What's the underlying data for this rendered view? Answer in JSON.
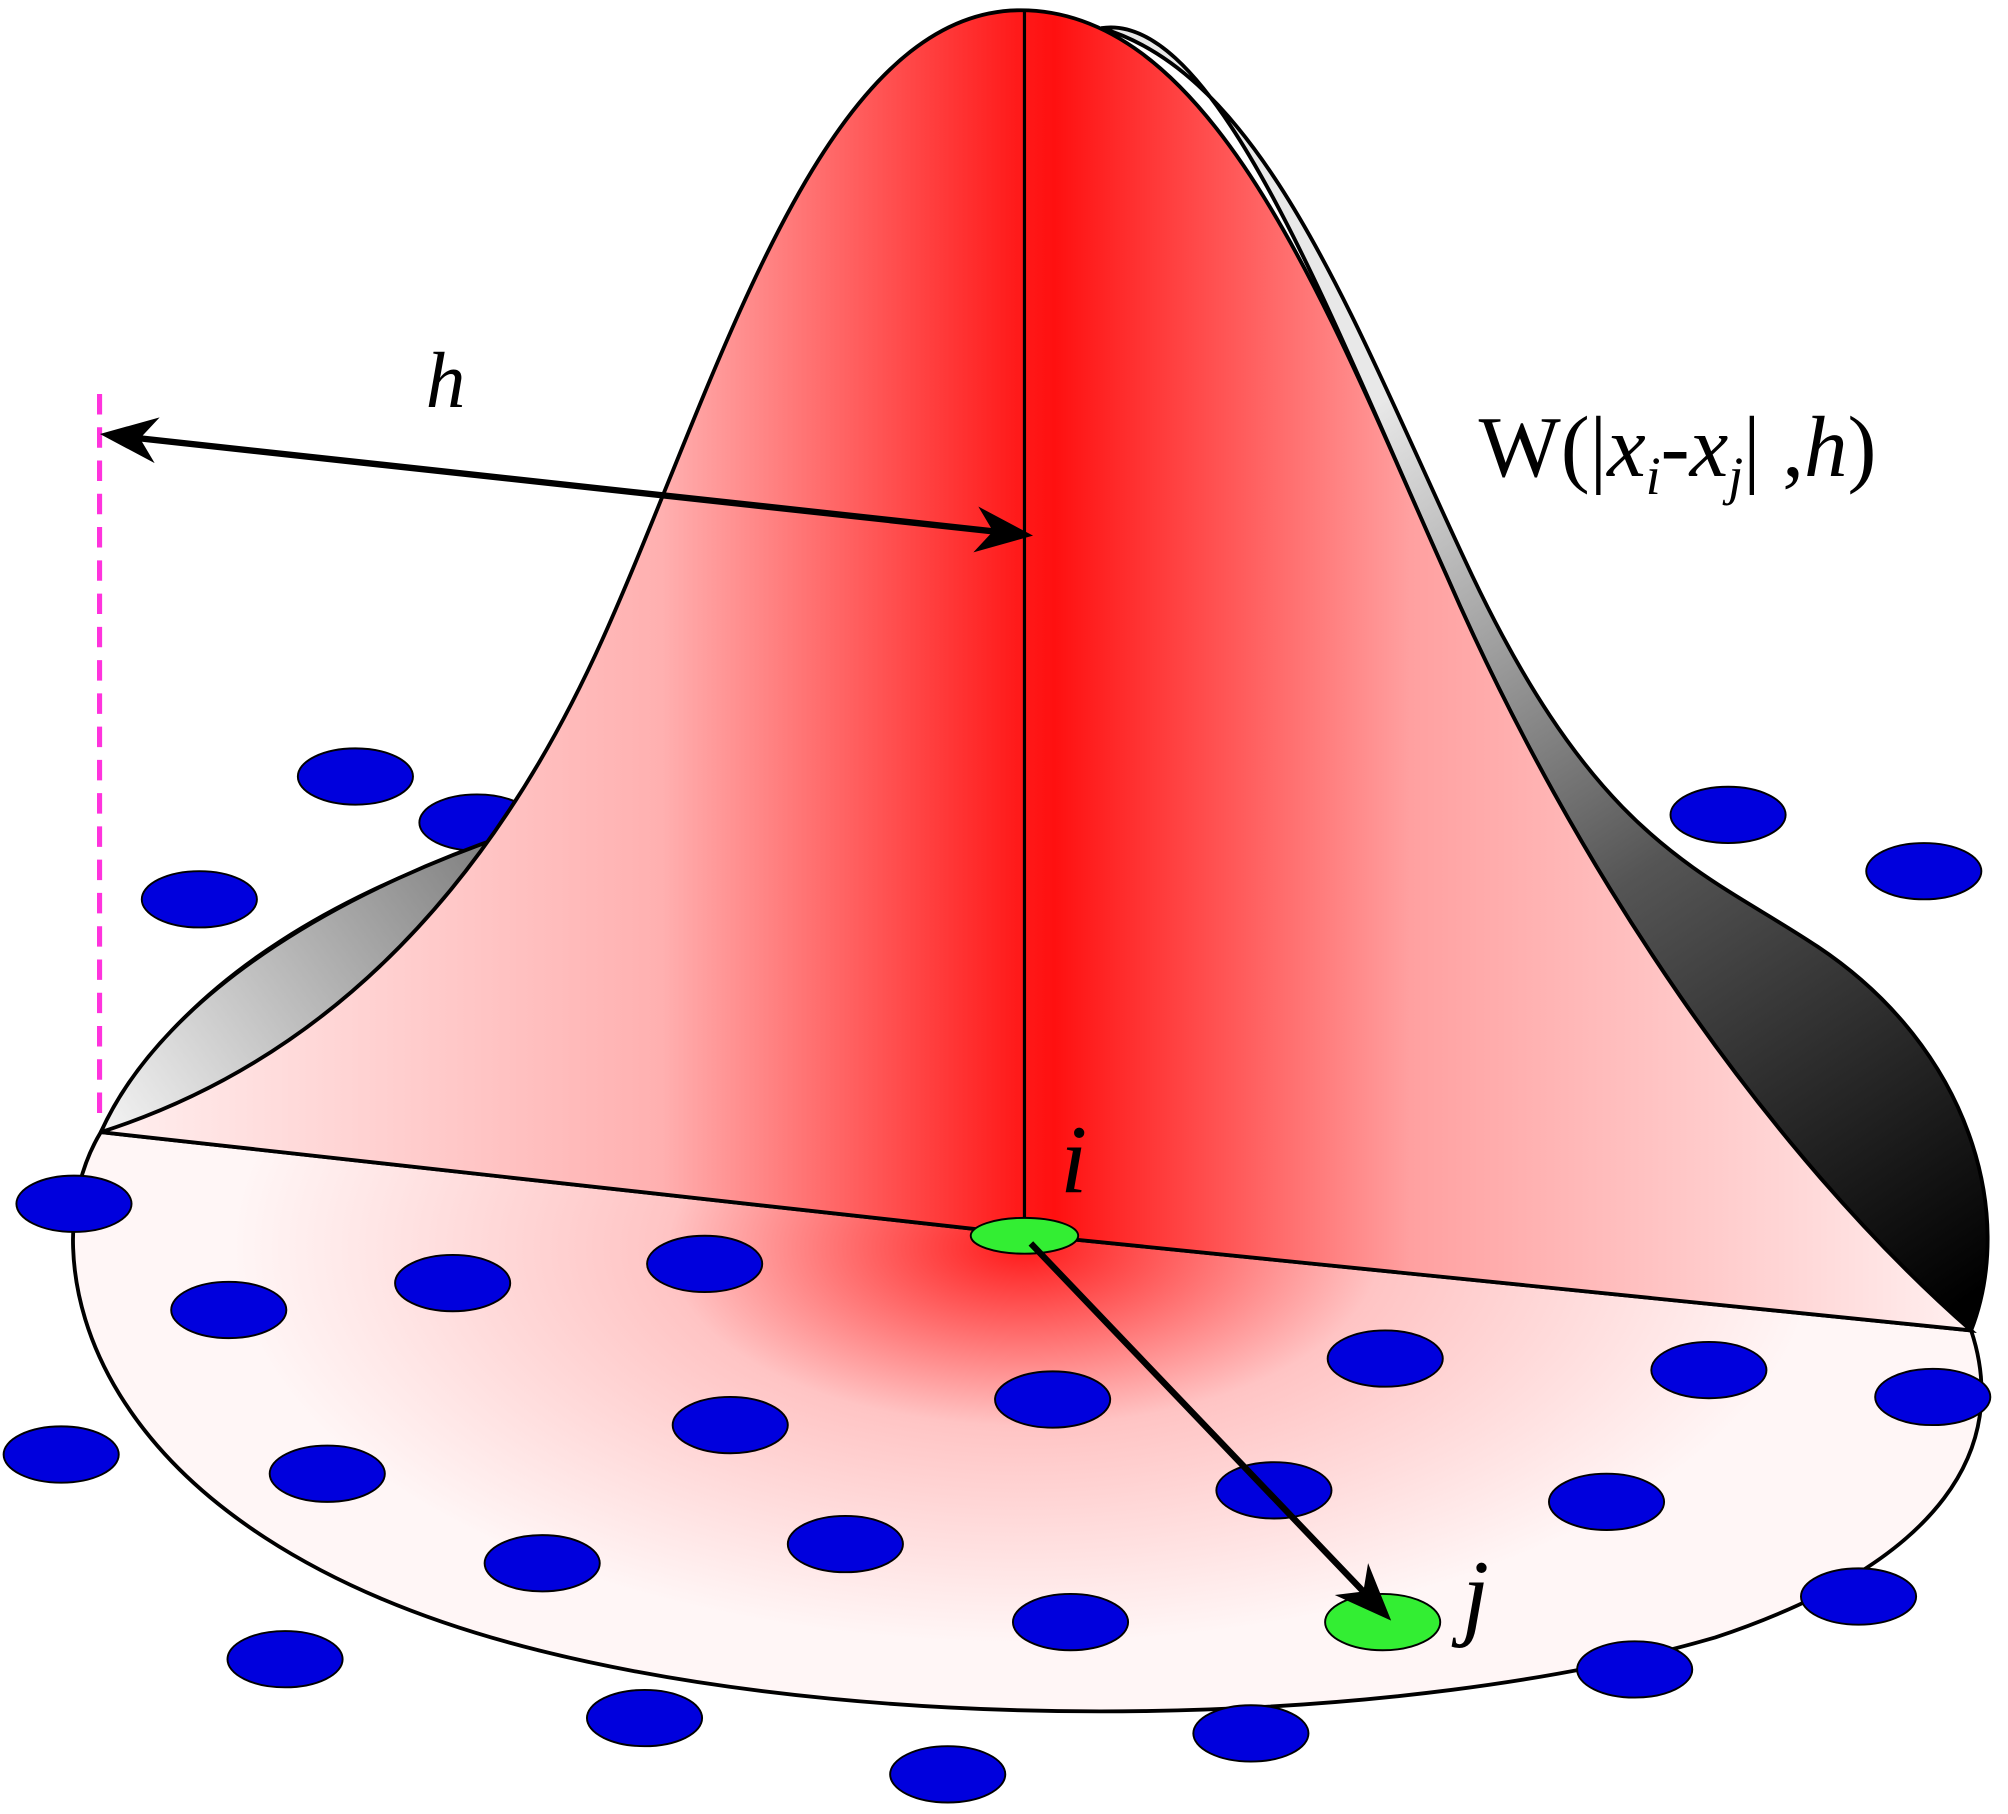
{
  "labels": {
    "h": "h",
    "i": "i",
    "j": "j",
    "kernel": [
      "W(|",
      "x",
      "i",
      "-",
      "x",
      "j",
      "| ,",
      "h",
      ")"
    ]
  }
}
